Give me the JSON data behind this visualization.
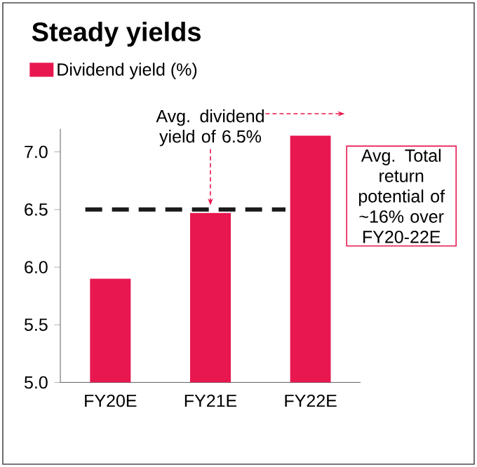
{
  "chart_data": {
    "type": "bar",
    "title": "Steady yields",
    "categories": [
      "FY20E",
      "FY21E",
      "FY22E"
    ],
    "series": [
      {
        "name": "Dividend yield (%)",
        "color": "#e8174f",
        "values": [
          5.9,
          6.47,
          7.14
        ]
      }
    ],
    "ylim": [
      5.0,
      7.2
    ],
    "yticks": [
      {
        "value": 5.0,
        "label": "5.0"
      },
      {
        "value": 5.5,
        "label": "5.5"
      },
      {
        "value": 6.0,
        "label": "6.0"
      },
      {
        "value": 6.5,
        "label": "6.5"
      },
      {
        "value": 7.0,
        "label": "7.0"
      }
    ],
    "ref_lines": [
      {
        "axis": "y",
        "value": 6.5,
        "color": "#1a1a1a",
        "line_style": "dashed"
      }
    ],
    "annotations": [
      {
        "text": "Avg. dividend yield of 6.5%",
        "x": "FY21E",
        "y": 6.5
      },
      "Avg. Total return potential of ~16% over FY20-22E"
    ],
    "grid": false,
    "legend": "top left"
  }
}
